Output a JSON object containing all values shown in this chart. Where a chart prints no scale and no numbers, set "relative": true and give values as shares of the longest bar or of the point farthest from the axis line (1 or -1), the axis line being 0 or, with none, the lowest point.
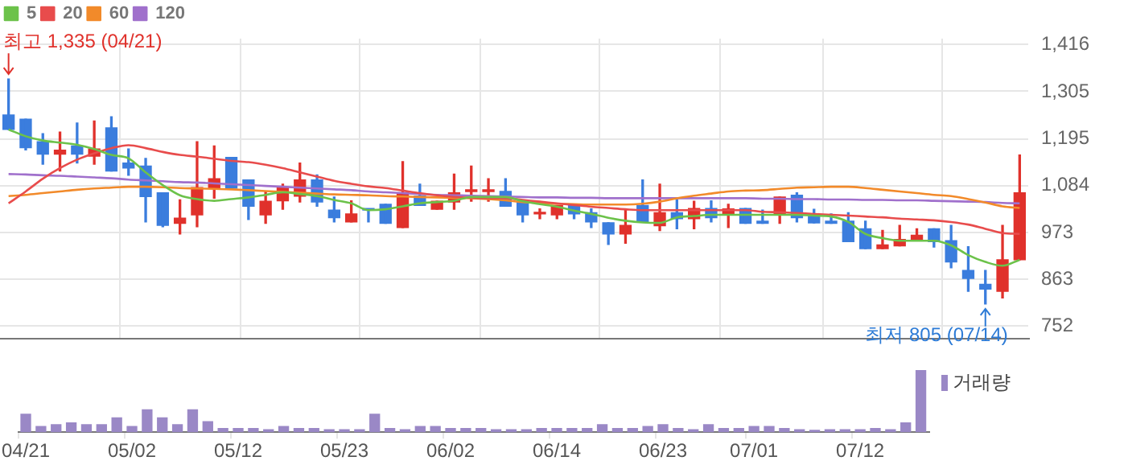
{
  "chart_data": [
    {
      "type": "candlestick",
      "categories": [
        null,
        null,
        null,
        null,
        null,
        null,
        null,
        null,
        null,
        null,
        null,
        null,
        null,
        null,
        null,
        null,
        null,
        null,
        null,
        null,
        null,
        null,
        null,
        null,
        null,
        null,
        null,
        null,
        null,
        null,
        null,
        null,
        null,
        null,
        null,
        null,
        null,
        null,
        null,
        null,
        null,
        null,
        null,
        null,
        null,
        null,
        null,
        null,
        null,
        null,
        null,
        null,
        null,
        null,
        null,
        null,
        null,
        null,
        null,
        null
      ],
      "ohlc": [
        [
          1250,
          1335,
          1216,
          1216
        ],
        [
          1240,
          1240,
          1168,
          1173
        ],
        [
          1187,
          1206,
          1134,
          1158
        ],
        [
          1158,
          1210,
          1118,
          1167
        ],
        [
          1177,
          1231,
          1137,
          1158
        ],
        [
          1153,
          1236,
          1134,
          1170
        ],
        [
          1220,
          1246,
          1118,
          1118
        ],
        [
          1137,
          1170,
          1108,
          1125
        ],
        [
          1130,
          1148,
          998,
          1058
        ],
        [
          1067,
          1067,
          987,
          990
        ],
        [
          995,
          1050,
          970,
          1007
        ],
        [
          1015,
          1187,
          987,
          1079
        ],
        [
          1078,
          1177,
          1054,
          1100
        ],
        [
          1150,
          1150,
          1078,
          1078
        ],
        [
          1097,
          1097,
          1004,
          1035
        ],
        [
          1015,
          1070,
          995,
          1047
        ],
        [
          1048,
          1087,
          1028,
          1078
        ],
        [
          1059,
          1137,
          1045,
          1097
        ],
        [
          1097,
          1109,
          1035,
          1045
        ],
        [
          1026,
          1057,
          998,
          1008
        ],
        [
          998,
          1048,
          998,
          1017
        ],
        [
          1029,
          1029,
          998,
          1026
        ],
        [
          1040,
          1040,
          995,
          995
        ],
        [
          985,
          1140,
          985,
          1067
        ],
        [
          1059,
          1087,
          1037,
          1037
        ],
        [
          1028,
          1047,
          1028,
          1047
        ],
        [
          1045,
          1111,
          1028,
          1067
        ],
        [
          1070,
          1130,
          1047,
          1070
        ],
        [
          1070,
          1100,
          1047,
          1070
        ],
        [
          1070,
          1100,
          1035,
          1035
        ],
        [
          1047,
          1047,
          998,
          1015
        ],
        [
          1017,
          1029,
          1006,
          1017
        ],
        [
          1015,
          1037,
          1006,
          1037
        ],
        [
          1037,
          1037,
          1006,
          1017
        ],
        [
          1020,
          1029,
          985,
          998
        ],
        [
          996,
          996,
          945,
          970
        ],
        [
          970,
          1026,
          948,
          990
        ],
        [
          1037,
          1097,
          998,
          998
        ],
        [
          989,
          1087,
          978,
          1020
        ],
        [
          1020,
          1050,
          982,
          1006
        ],
        [
          1006,
          1047,
          982,
          1030
        ],
        [
          1030,
          1048,
          998,
          1008
        ],
        [
          1017,
          1040,
          985,
          1029
        ],
        [
          1030,
          1030,
          995,
          995
        ],
        [
          1000,
          1026,
          995,
          995
        ],
        [
          1017,
          1057,
          995,
          1057
        ],
        [
          1061,
          1067,
          998,
          1008
        ],
        [
          1011,
          1028,
          996,
          996
        ],
        [
          1000,
          1017,
          995,
          995
        ],
        [
          1000,
          1020,
          952,
          952
        ],
        [
          982,
          1000,
          935,
          935
        ],
        [
          935,
          978,
          935,
          944
        ],
        [
          942,
          990,
          942,
          957
        ],
        [
          957,
          982,
          957,
          967
        ],
        [
          982,
          982,
          939,
          952
        ],
        [
          954,
          990,
          890,
          904
        ],
        [
          884,
          940,
          835,
          865
        ],
        [
          851,
          884,
          805,
          840
        ],
        [
          835,
          990,
          819,
          909
        ],
        [
          909,
          1156,
          909,
          1067
        ]
      ],
      "colors": [
        "#3b7ddd",
        "#3b7ddd",
        "#3b7ddd",
        "#e0312b",
        "#3b7ddd",
        "#e0312b",
        "#3b7ddd",
        "#3b7ddd",
        "#3b7ddd",
        "#3b7ddd",
        "#e0312b",
        "#e0312b",
        "#e0312b",
        "#3b7ddd",
        "#3b7ddd",
        "#e0312b",
        "#e0312b",
        "#e0312b",
        "#3b7ddd",
        "#3b7ddd",
        "#e0312b",
        "#3b7ddd",
        "#3b7ddd",
        "#e0312b",
        "#3b7ddd",
        "#e0312b",
        "#e0312b",
        "#e0312b",
        "#e0312b",
        "#3b7ddd",
        "#3b7ddd",
        "#e0312b",
        "#e0312b",
        "#3b7ddd",
        "#3b7ddd",
        "#3b7ddd",
        "#e0312b",
        "#3b7ddd",
        "#e0312b",
        "#3b7ddd",
        "#e0312b",
        "#3b7ddd",
        "#e0312b",
        "#3b7ddd",
        "#3b7ddd",
        "#e0312b",
        "#3b7ddd",
        "#3b7ddd",
        "#3b7ddd",
        "#3b7ddd",
        "#3b7ddd",
        "#e0312b",
        "#e0312b",
        "#e0312b",
        "#3b7ddd",
        "#3b7ddd",
        "#3b7ddd",
        "#3b7ddd",
        "#e0312b",
        "#e0312b"
      ],
      "series": [
        {
          "name": "5",
          "type": "line",
          "color": "#6cc24a",
          "values": [
            1216,
            1200,
            1190,
            1185,
            1180,
            1170,
            1156,
            1148,
            1115,
            1085,
            1061,
            1052,
            1048,
            1052,
            1056,
            1062,
            1068,
            1064,
            1059,
            1050,
            1042,
            1026,
            1028,
            1035,
            1042,
            1045,
            1048,
            1057,
            1057,
            1057,
            1047,
            1040,
            1034,
            1025,
            1017,
            1008,
            1001,
            997,
            996,
            1009,
            1012,
            1015,
            1015,
            1015,
            1015,
            1015,
            1015,
            1013,
            1011,
            998,
            970,
            960,
            954,
            954,
            954,
            943,
            920,
            904,
            895,
            909
          ]
        },
        {
          "name": "20",
          "type": "line",
          "color": "#e84c4c",
          "values": [
            1042,
            1070,
            1100,
            1125,
            1145,
            1160,
            1172,
            1179,
            1172,
            1163,
            1156,
            1152,
            1147,
            1142,
            1139,
            1133,
            1125,
            1115,
            1105,
            1095,
            1088,
            1082,
            1078,
            1072,
            1066,
            1061,
            1057,
            1055,
            1054,
            1054,
            1050,
            1046,
            1042,
            1038,
            1034,
            1031,
            1028,
            1026,
            1026,
            1026,
            1026,
            1026,
            1026,
            1026,
            1022,
            1021,
            1019,
            1017,
            1015,
            1013,
            1011,
            1009,
            1006,
            1004,
            1002,
            998,
            992,
            982,
            972,
            970
          ]
        },
        {
          "name": "60",
          "type": "line",
          "color": "#f28a2a",
          "values": [
            1059,
            1062,
            1066,
            1070,
            1074,
            1077,
            1079,
            1081,
            1081,
            1080,
            1078,
            1077,
            1076,
            1075,
            1073,
            1071,
            1069,
            1067,
            1065,
            1063,
            1062,
            1061,
            1059,
            1058,
            1057,
            1056,
            1055,
            1054,
            1052,
            1049,
            1045,
            1043,
            1041,
            1040,
            1039,
            1039,
            1039,
            1041,
            1046,
            1054,
            1060,
            1065,
            1070,
            1072,
            1073,
            1076,
            1079,
            1080,
            1081,
            1081,
            1078,
            1074,
            1070,
            1066,
            1062,
            1059,
            1052,
            1044,
            1035,
            1031
          ]
        },
        {
          "name": "120",
          "type": "line",
          "color": "#a070cc",
          "values": [
            1111,
            1110,
            1108,
            1107,
            1105,
            1103,
            1101,
            1098,
            1096,
            1094,
            1092,
            1091,
            1089,
            1087,
            1085,
            1083,
            1081,
            1079,
            1077,
            1075,
            1073,
            1070,
            1068,
            1066,
            1064,
            1062,
            1061,
            1060,
            1059,
            1058,
            1057,
            1056,
            1056,
            1055,
            1055,
            1054,
            1054,
            1054,
            1054,
            1054,
            1054,
            1054,
            1054,
            1054,
            1053,
            1053,
            1052,
            1052,
            1051,
            1051,
            1050,
            1050,
            1049,
            1049,
            1048,
            1047,
            1046,
            1045,
            1043,
            1042
          ]
        }
      ],
      "ylim": [
        722,
        1430
      ],
      "yticks": [
        752,
        863,
        973,
        {
          "value": 1084,
          "label": "1,084"
        },
        {
          "value": 1195,
          "label": "1,195"
        },
        {
          "value": 1305,
          "label": "1,305"
        },
        {
          "value": 1416,
          "label": "1,416"
        }
      ],
      "grid": true,
      "legend": "top left",
      "tick_labels": "y",
      "annotations": [
        "최고 1,335 (04/21)",
        "최저 805 (07/14)"
      ]
    },
    {
      "type": "bar",
      "relative": true,
      "legend": "top right",
      "categories": [
        "04/21",
        null,
        null,
        null,
        null,
        null,
        null,
        "05/02",
        null,
        null,
        null,
        null,
        null,
        null,
        "05/12",
        null,
        null,
        null,
        null,
        null,
        null,
        "05/23",
        null,
        null,
        null,
        null,
        null,
        null,
        "06/02",
        null,
        null,
        null,
        null,
        null,
        null,
        "06/14",
        null,
        null,
        null,
        null,
        null,
        null,
        "06/23",
        null,
        null,
        null,
        null,
        null,
        "07/01",
        null,
        null,
        null,
        null,
        null,
        null,
        "07/12",
        null,
        null,
        null,
        null
      ],
      "series": [
        {
          "name": "거래량",
          "color": "#9a88c6",
          "values": [
            0.29,
            0.09,
            0.12,
            0.15,
            0.12,
            0.12,
            0.23,
            0.09,
            0.36,
            0.23,
            0.12,
            0.36,
            0.17,
            0.06,
            0.06,
            0.06,
            0.04,
            0.09,
            0.06,
            0.06,
            0.04,
            0.04,
            0.04,
            0.29,
            0.06,
            0.04,
            0.09,
            0.09,
            0.06,
            0.06,
            0.06,
            0.04,
            0.04,
            0.04,
            0.06,
            0.06,
            0.06,
            0.06,
            0.12,
            0.06,
            0.06,
            0.09,
            0.12,
            0.06,
            0.04,
            0.12,
            0.06,
            0.06,
            0.09,
            0.09,
            0.06,
            0.04,
            0.03,
            0.04,
            0.04,
            0.04,
            0.06,
            0.04,
            0.15,
            1
          ]
        }
      ]
    }
  ]
}
